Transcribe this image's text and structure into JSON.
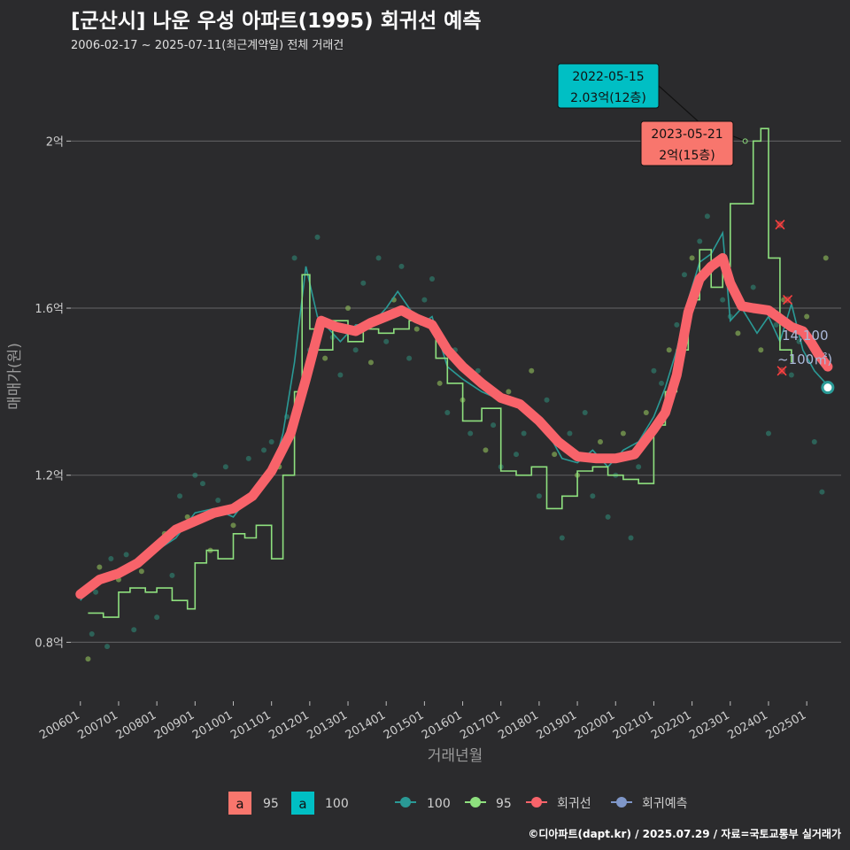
{
  "header": {
    "title": "[군산시] 나운 우성 아파트(1995) 회귀선 예측",
    "subtitle": "2006-02-17 ~ 2025-07-11(최근계약일) 전체 거래건"
  },
  "footer": {
    "credit": "©디아파트(dapt.kr) / 2025.07.29 / 자료=국토교통부 실거래가"
  },
  "colors": {
    "background": "#2b2b2d",
    "grid": "#5a5a5c",
    "area95": "#f8766d",
    "area100": "#00bfc4",
    "line100": "#2a9a96",
    "line95": "#8ee07e",
    "regression": "#f8636a",
    "forecast": "#7f97c9"
  },
  "chart_data": {
    "type": "line",
    "xlabel": "거래년월",
    "ylabel": "매매가(원)",
    "x_ticks": [
      "200601",
      "200701",
      "200801",
      "200901",
      "201001",
      "201101",
      "201201",
      "201301",
      "201401",
      "201501",
      "201601",
      "201701",
      "201801",
      "201901",
      "202001",
      "202101",
      "202201",
      "202301",
      "202401",
      "202501"
    ],
    "y_ticks": [
      {
        "value": 0.8,
        "label": "0.8억"
      },
      {
        "value": 1.2,
        "label": "1.2억"
      },
      {
        "value": 1.6,
        "label": "1.6억"
      },
      {
        "value": 2.0,
        "label": "2억"
      }
    ],
    "ylim": [
      0.68,
      2.2
    ],
    "xlim": [
      2005.75,
      2025.9
    ],
    "series": [
      {
        "name": "회귀선",
        "x": [
          2006.0,
          2006.5,
          2007.0,
          2007.5,
          2008.0,
          2008.5,
          2009.0,
          2009.5,
          2010.0,
          2010.5,
          2011.0,
          2011.5,
          2011.9,
          2012.3,
          2012.7,
          2013.2,
          2013.6,
          2014.0,
          2014.4,
          2014.8,
          2015.2,
          2015.6,
          2016.0,
          2016.5,
          2017.0,
          2017.5,
          2018.0,
          2018.5,
          2019.0,
          2019.5,
          2020.0,
          2020.5,
          2021.0,
          2021.3,
          2021.6,
          2021.9,
          2022.2,
          2022.5,
          2022.8,
          2023.0,
          2023.3,
          2023.6,
          2024.0,
          2024.3,
          2024.6,
          2024.9,
          2025.1,
          2025.3,
          2025.55
        ],
        "values": [
          0.915,
          0.95,
          0.965,
          0.99,
          1.03,
          1.07,
          1.09,
          1.11,
          1.12,
          1.15,
          1.21,
          1.3,
          1.43,
          1.57,
          1.555,
          1.545,
          1.565,
          1.58,
          1.595,
          1.575,
          1.56,
          1.5,
          1.46,
          1.42,
          1.385,
          1.37,
          1.33,
          1.28,
          1.245,
          1.24,
          1.24,
          1.25,
          1.31,
          1.35,
          1.44,
          1.59,
          1.67,
          1.7,
          1.72,
          1.66,
          1.605,
          1.6,
          1.595,
          1.575,
          1.555,
          1.545,
          1.52,
          1.49,
          1.46
        ]
      },
      {
        "name": "100",
        "x": [
          2006.0,
          2006.5,
          2007.0,
          2007.5,
          2008.0,
          2008.5,
          2009.0,
          2009.5,
          2010.0,
          2010.5,
          2011.0,
          2011.3,
          2011.6,
          2011.9,
          2012.2,
          2012.5,
          2012.8,
          2013.2,
          2013.6,
          2014.0,
          2014.3,
          2014.6,
          2014.9,
          2015.2,
          2015.6,
          2016.0,
          2016.5,
          2017.0,
          2017.5,
          2018.0,
          2018.3,
          2018.6,
          2019.0,
          2019.4,
          2019.8,
          2020.2,
          2020.6,
          2021.0,
          2021.3,
          2021.6,
          2021.9,
          2022.2,
          2022.5,
          2022.8,
          2023.0,
          2023.3,
          2023.7,
          2024.0,
          2024.3,
          2024.6,
          2024.9,
          2025.2,
          2025.5
        ],
        "values": [
          0.9,
          0.96,
          0.97,
          0.98,
          1.02,
          1.05,
          1.11,
          1.12,
          1.1,
          1.16,
          1.2,
          1.3,
          1.47,
          1.7,
          1.58,
          1.55,
          1.52,
          1.56,
          1.56,
          1.6,
          1.64,
          1.6,
          1.56,
          1.58,
          1.46,
          1.43,
          1.4,
          1.38,
          1.38,
          1.33,
          1.29,
          1.24,
          1.23,
          1.26,
          1.22,
          1.26,
          1.28,
          1.34,
          1.41,
          1.5,
          1.62,
          1.71,
          1.73,
          1.78,
          1.57,
          1.6,
          1.54,
          1.58,
          1.52,
          1.61,
          1.5,
          1.45,
          1.42
        ]
      },
      {
        "name": "95",
        "x": [
          2006.2,
          2006.6,
          2007.0,
          2007.3,
          2007.7,
          2008.0,
          2008.4,
          2008.8,
          2009.0,
          2009.3,
          2009.6,
          2010.0,
          2010.3,
          2010.6,
          2011.0,
          2011.3,
          2011.6,
          2011.8,
          2012.0,
          2012.2,
          2012.6,
          2013.0,
          2013.4,
          2013.8,
          2014.2,
          2014.6,
          2015.0,
          2015.3,
          2015.6,
          2016.0,
          2016.5,
          2017.0,
          2017.4,
          2017.8,
          2018.2,
          2018.6,
          2019.0,
          2019.4,
          2019.8,
          2020.2,
          2020.6,
          2021.0,
          2021.3,
          2021.6,
          2021.9,
          2022.2,
          2022.5,
          2022.8,
          2023.0,
          2023.3,
          2023.6,
          2023.8,
          2024.0,
          2024.3,
          2024.6
        ],
        "values": [
          0.87,
          0.86,
          0.92,
          0.93,
          0.92,
          0.93,
          0.9,
          0.88,
          0.99,
          1.02,
          1.0,
          1.06,
          1.05,
          1.08,
          1.0,
          1.2,
          1.4,
          1.68,
          1.55,
          1.5,
          1.57,
          1.52,
          1.55,
          1.54,
          1.55,
          1.57,
          1.56,
          1.48,
          1.42,
          1.33,
          1.36,
          1.21,
          1.2,
          1.22,
          1.12,
          1.15,
          1.21,
          1.22,
          1.2,
          1.19,
          1.18,
          1.32,
          1.4,
          1.5,
          1.62,
          1.74,
          1.65,
          1.7,
          1.85,
          1.85,
          2.0,
          2.03,
          1.72,
          1.5,
          1.47
        ]
      },
      {
        "name": "회귀예측",
        "x": [
          2025.55
        ],
        "values": [
          1.41
        ]
      }
    ],
    "scatter_points": [
      [
        2006.2,
        0.76
      ],
      [
        2006.3,
        0.82
      ],
      [
        2006.4,
        0.92
      ],
      [
        2006.5,
        0.98
      ],
      [
        2006.7,
        0.79
      ],
      [
        2006.8,
        1.0
      ],
      [
        2007.0,
        0.95
      ],
      [
        2007.2,
        1.01
      ],
      [
        2007.4,
        0.83
      ],
      [
        2007.6,
        0.97
      ],
      [
        2007.8,
        1.02
      ],
      [
        2008.0,
        0.86
      ],
      [
        2008.2,
        1.06
      ],
      [
        2008.4,
        0.96
      ],
      [
        2008.6,
        1.15
      ],
      [
        2008.8,
        1.1
      ],
      [
        2009.0,
        1.2
      ],
      [
        2009.2,
        1.18
      ],
      [
        2009.4,
        1.02
      ],
      [
        2009.6,
        1.14
      ],
      [
        2009.8,
        1.22
      ],
      [
        2010.0,
        1.08
      ],
      [
        2010.2,
        1.13
      ],
      [
        2010.4,
        1.24
      ],
      [
        2010.6,
        1.16
      ],
      [
        2010.8,
        1.26
      ],
      [
        2011.0,
        1.28
      ],
      [
        2011.2,
        1.22
      ],
      [
        2011.4,
        1.34
      ],
      [
        2011.6,
        1.72
      ],
      [
        2011.8,
        1.4
      ],
      [
        2012.0,
        1.5
      ],
      [
        2012.2,
        1.77
      ],
      [
        2012.4,
        1.48
      ],
      [
        2012.6,
        1.53
      ],
      [
        2012.8,
        1.44
      ],
      [
        2013.0,
        1.6
      ],
      [
        2013.2,
        1.5
      ],
      [
        2013.4,
        1.66
      ],
      [
        2013.6,
        1.47
      ],
      [
        2013.8,
        1.72
      ],
      [
        2014.0,
        1.52
      ],
      [
        2014.2,
        1.62
      ],
      [
        2014.4,
        1.7
      ],
      [
        2014.6,
        1.48
      ],
      [
        2014.8,
        1.55
      ],
      [
        2015.0,
        1.62
      ],
      [
        2015.2,
        1.67
      ],
      [
        2015.4,
        1.42
      ],
      [
        2015.6,
        1.35
      ],
      [
        2015.8,
        1.5
      ],
      [
        2016.0,
        1.38
      ],
      [
        2016.2,
        1.3
      ],
      [
        2016.4,
        1.45
      ],
      [
        2016.6,
        1.26
      ],
      [
        2016.8,
        1.32
      ],
      [
        2017.0,
        1.22
      ],
      [
        2017.2,
        1.4
      ],
      [
        2017.4,
        1.25
      ],
      [
        2017.6,
        1.3
      ],
      [
        2017.8,
        1.45
      ],
      [
        2018.0,
        1.15
      ],
      [
        2018.2,
        1.38
      ],
      [
        2018.4,
        1.25
      ],
      [
        2018.6,
        1.05
      ],
      [
        2018.8,
        1.3
      ],
      [
        2019.0,
        1.2
      ],
      [
        2019.2,
        1.35
      ],
      [
        2019.4,
        1.15
      ],
      [
        2019.6,
        1.28
      ],
      [
        2019.8,
        1.1
      ],
      [
        2020.0,
        1.2
      ],
      [
        2020.2,
        1.3
      ],
      [
        2020.4,
        1.05
      ],
      [
        2020.6,
        1.22
      ],
      [
        2020.8,
        1.35
      ],
      [
        2021.0,
        1.45
      ],
      [
        2021.2,
        1.42
      ],
      [
        2021.4,
        1.5
      ],
      [
        2021.6,
        1.56
      ],
      [
        2021.8,
        1.68
      ],
      [
        2022.0,
        1.72
      ],
      [
        2022.2,
        1.76
      ],
      [
        2022.4,
        1.82
      ],
      [
        2022.6,
        1.7
      ],
      [
        2022.8,
        1.62
      ],
      [
        2023.0,
        1.58
      ],
      [
        2023.2,
        1.54
      ],
      [
        2023.4,
        1.6
      ],
      [
        2023.6,
        1.65
      ],
      [
        2023.8,
        1.5
      ],
      [
        2024.0,
        1.3
      ],
      [
        2024.2,
        1.56
      ],
      [
        2024.4,
        1.62
      ],
      [
        2024.6,
        1.44
      ],
      [
        2024.8,
        1.52
      ],
      [
        2025.0,
        1.58
      ],
      [
        2025.2,
        1.28
      ],
      [
        2025.4,
        1.16
      ],
      [
        2025.5,
        1.72
      ]
    ],
    "cancelled_points": [
      [
        2024.3,
        1.8
      ],
      [
        2024.5,
        1.62
      ],
      [
        2024.35,
        1.45
      ]
    ],
    "callouts": [
      {
        "date": "2022-05-15",
        "price": "2.03억(12층)",
        "x": 2022.37,
        "y": 2.03,
        "area": "100"
      },
      {
        "date": "2023-05-21",
        "price": "2억(15층)",
        "x": 2023.39,
        "y": 2.0,
        "area": "95"
      }
    ],
    "last_label": {
      "value": "14,100",
      "area": "~100㎡)"
    },
    "legend": {
      "areas": [
        {
          "key": "a",
          "label": "95"
        },
        {
          "key": "a",
          "label": "100"
        }
      ],
      "lines": [
        {
          "label": "100"
        },
        {
          "label": "95"
        },
        {
          "label": "회귀선"
        },
        {
          "label": "회귀예측"
        }
      ]
    }
  }
}
